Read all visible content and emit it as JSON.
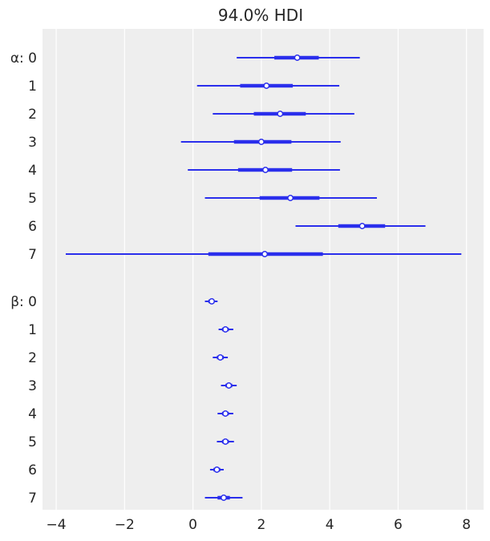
{
  "chart_data": {
    "type": "forest",
    "title": "94.0% HDI",
    "xlabel": "",
    "ylabel": "",
    "xlim": [
      -4.4,
      8.5
    ],
    "xticks": [
      -4,
      -2,
      0,
      2,
      4,
      6,
      8
    ],
    "xtick_labels": [
      "−4",
      "−2",
      "0",
      "2",
      "4",
      "6",
      "8"
    ],
    "grid": "vertical",
    "colors": {
      "background": "#eeeeee",
      "grid": "#ffffff",
      "series": "#2a2eec"
    },
    "groups": [
      {
        "name": "α",
        "items": [
          {
            "label": "0",
            "mean": 3.05,
            "hdi": [
              1.28,
              4.88
            ],
            "iqr": [
              2.38,
              3.68
            ]
          },
          {
            "label": "1",
            "mean": 2.15,
            "hdi": [
              0.12,
              4.28
            ],
            "iqr": [
              1.38,
              2.92
            ]
          },
          {
            "label": "2",
            "mean": 2.55,
            "hdi": [
              0.58,
              4.72
            ],
            "iqr": [
              1.78,
              3.3
            ]
          },
          {
            "label": "3",
            "mean": 2.0,
            "hdi": [
              -0.35,
              4.32
            ],
            "iqr": [
              1.2,
              2.88
            ]
          },
          {
            "label": "4",
            "mean": 2.12,
            "hdi": [
              -0.15,
              4.3
            ],
            "iqr": [
              1.32,
              2.9
            ]
          },
          {
            "label": "5",
            "mean": 2.85,
            "hdi": [
              0.35,
              5.38
            ],
            "iqr": [
              1.95,
              3.7
            ]
          },
          {
            "label": "6",
            "mean": 4.95,
            "hdi": [
              3.0,
              6.8
            ],
            "iqr": [
              4.25,
              5.62
            ]
          },
          {
            "label": "7",
            "mean": 2.1,
            "hdi": [
              -3.72,
              7.85
            ],
            "iqr": [
              0.45,
              3.8
            ]
          }
        ]
      },
      {
        "name": "β",
        "items": [
          {
            "label": "0",
            "mean": 0.55,
            "hdi": [
              0.35,
              0.72
            ],
            "iqr": [
              0.45,
              0.63
            ]
          },
          {
            "label": "1",
            "mean": 0.95,
            "hdi": [
              0.75,
              1.18
            ],
            "iqr": [
              0.85,
              1.05
            ]
          },
          {
            "label": "2",
            "mean": 0.8,
            "hdi": [
              0.58,
              1.02
            ],
            "iqr": [
              0.7,
              0.9
            ]
          },
          {
            "label": "3",
            "mean": 1.05,
            "hdi": [
              0.82,
              1.28
            ],
            "iqr": [
              0.95,
              1.15
            ]
          },
          {
            "label": "4",
            "mean": 0.95,
            "hdi": [
              0.72,
              1.18
            ],
            "iqr": [
              0.85,
              1.05
            ]
          },
          {
            "label": "5",
            "mean": 0.95,
            "hdi": [
              0.7,
              1.2
            ],
            "iqr": [
              0.85,
              1.05
            ]
          },
          {
            "label": "6",
            "mean": 0.7,
            "hdi": [
              0.5,
              0.9
            ],
            "iqr": [
              0.6,
              0.8
            ]
          },
          {
            "label": "7",
            "mean": 0.9,
            "hdi": [
              0.35,
              1.45
            ],
            "iqr": [
              0.72,
              1.08
            ]
          }
        ]
      }
    ]
  }
}
